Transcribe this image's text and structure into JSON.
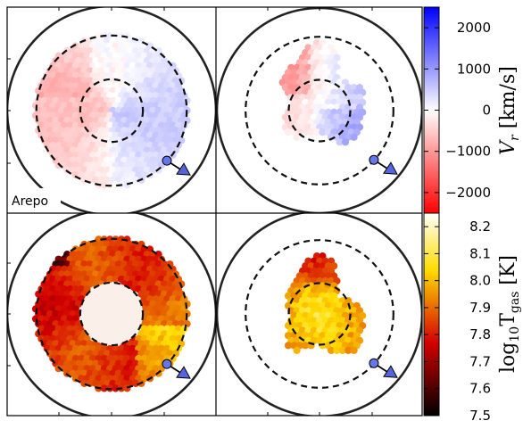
{
  "chart_data": [
    {
      "type": "heatmap",
      "panel": "top-left",
      "quantity": "radial velocity",
      "annotation": "Arepo",
      "dashed_circles_radius_frac": [
        0.3,
        0.72
      ],
      "solid_circle_radius_frac": 1.0,
      "filled_radius_range_frac": [
        0.0,
        0.73
      ],
      "field_range": [
        -2500,
        2500
      ],
      "pattern": "left half mildly receding, right half mildly approaching",
      "dominant_values": {
        "left": -700,
        "right": 500,
        "upper_right": 900
      }
    },
    {
      "type": "heatmap",
      "panel": "top-right",
      "quantity": "radial velocity",
      "dashed_circles_radius_frac": [
        0.3,
        0.72
      ],
      "solid_circle_radius_frac": 1.0,
      "filled_region": "irregular central patch",
      "field_range": [
        -2500,
        2500
      ],
      "dominant_values": {
        "left": -1200,
        "right": 1200
      }
    },
    {
      "type": "heatmap",
      "panel": "bottom-left",
      "quantity": "gas temperature",
      "dashed_circles_radius_frac": [
        0.3,
        0.72
      ],
      "solid_circle_radius_frac": 1.0,
      "filled_radius_range_frac": [
        0.3,
        0.73
      ],
      "field_range": [
        7.5,
        8.25
      ],
      "dominant_values": {
        "outer_ring": 7.85,
        "hot_spots": 8.0
      }
    },
    {
      "type": "heatmap",
      "panel": "bottom-right",
      "quantity": "gas temperature",
      "dashed_circles_radius_frac": [
        0.3,
        0.72
      ],
      "solid_circle_radius_frac": 1.0,
      "filled_region": "irregular central patch",
      "field_range": [
        7.5,
        8.25
      ],
      "dominant_values": {
        "core": 8.05,
        "edge": 7.8
      }
    }
  ],
  "colorbars": [
    {
      "name": "Vr",
      "label_main": "V",
      "label_sub": "r",
      "label_unit": " [km/s]",
      "range": [
        -2500,
        2500
      ],
      "ticks": [
        2000,
        1000,
        0,
        -1000,
        -2000
      ],
      "tick_labels": [
        "2000",
        "1000",
        "0",
        "−1000",
        "−2000"
      ],
      "colormap": "bwr",
      "colors": {
        "low": "#ff0000",
        "mid": "#ffffff",
        "high": "#0000ff"
      }
    },
    {
      "name": "Tgas",
      "label_pre": "log",
      "label_sub1": "10",
      "label_mid": "T",
      "label_sub2": "gas",
      "label_unit": " [K]",
      "range": [
        7.5,
        8.25
      ],
      "ticks": [
        8.2,
        8.1,
        8.0,
        7.9,
        7.8,
        7.7,
        7.6,
        7.5
      ],
      "tick_labels": [
        "8.2",
        "8.1",
        "8.0",
        "7.9",
        "7.8",
        "7.7",
        "7.6",
        "7.5"
      ],
      "colormap": "hot",
      "colors": {
        "low": "#000000",
        "mid1": "#e60000",
        "mid2": "#ffee00",
        "high": "#ffffff"
      }
    }
  ],
  "observer_marker": {
    "circle_color": "#6677ee",
    "arrow_color": "#5566dd"
  }
}
